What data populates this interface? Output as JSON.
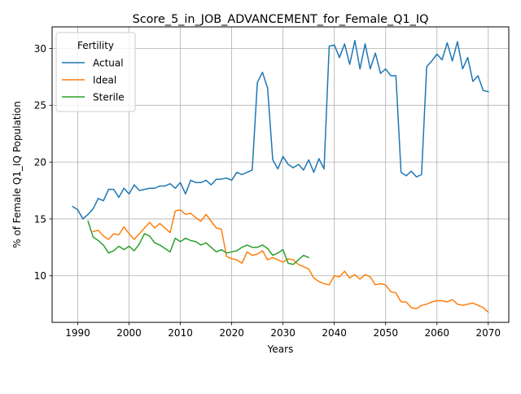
{
  "chart_data": {
    "type": "line",
    "title": "Score_5_in_JOB_ADVANCEMENT_for_Female_Q1_IQ",
    "xlabel": "Years",
    "ylabel": "% of Female Q1_IQ Population",
    "xlim": [
      1985,
      2074
    ],
    "ylim": [
      5.9,
      31.9
    ],
    "xticks": [
      1990,
      2000,
      2010,
      2020,
      2030,
      2040,
      2050,
      2060,
      2070
    ],
    "yticks": [
      10,
      15,
      20,
      25,
      30
    ],
    "grid": true,
    "legend": {
      "title": "Fertility",
      "position": "top-left"
    },
    "series": [
      {
        "name": "Actual",
        "color": "#1f77b4",
        "x": [
          1989,
          1990,
          1991,
          1992,
          1993,
          1994,
          1995,
          1996,
          1997,
          1998,
          1999,
          2000,
          2001,
          2002,
          2003,
          2004,
          2005,
          2006,
          2007,
          2008,
          2009,
          2010,
          2011,
          2012,
          2013,
          2014,
          2015,
          2016,
          2017,
          2018,
          2019,
          2020,
          2021,
          2022,
          2023,
          2024,
          2025,
          2026,
          2027,
          2028,
          2029,
          2030,
          2031,
          2032,
          2033,
          2034,
          2035,
          2036,
          2037,
          2038,
          2039,
          2040,
          2041,
          2042,
          2043,
          2044,
          2045,
          2046,
          2047,
          2048,
          2049,
          2050,
          2051,
          2052,
          2053,
          2054,
          2055,
          2056,
          2057,
          2058,
          2059,
          2060,
          2061,
          2062,
          2063,
          2064,
          2065,
          2066,
          2067,
          2068,
          2069,
          2070
        ],
        "y": [
          16.1,
          15.8,
          15.0,
          15.4,
          15.9,
          16.8,
          16.6,
          17.6,
          17.6,
          16.9,
          17.7,
          17.2,
          18.0,
          17.5,
          17.6,
          17.7,
          17.7,
          17.9,
          17.9,
          18.1,
          17.7,
          18.2,
          17.2,
          18.4,
          18.2,
          18.2,
          18.4,
          18.0,
          18.5,
          18.5,
          18.6,
          18.4,
          19.1,
          18.9,
          19.1,
          19.3,
          27.0,
          27.9,
          26.5,
          20.2,
          19.4,
          20.5,
          19.8,
          19.5,
          19.8,
          19.3,
          20.2,
          19.1,
          20.3,
          19.4,
          30.2,
          30.3,
          29.2,
          30.4,
          28.6,
          30.7,
          28.2,
          30.4,
          28.2,
          29.6,
          27.8,
          28.2,
          27.6,
          27.6,
          19.1,
          18.8,
          19.2,
          18.7,
          18.9,
          28.4,
          28.9,
          29.5,
          29.0,
          30.5,
          28.9,
          30.6,
          28.2,
          29.2,
          27.1,
          27.6,
          26.3,
          26.2
        ]
      },
      {
        "name": "Ideal",
        "color": "#ff7f0e",
        "x": [
          1993,
          1994,
          1995,
          1996,
          1997,
          1998,
          1999,
          2000,
          2001,
          2002,
          2003,
          2004,
          2005,
          2006,
          2007,
          2008,
          2009,
          2010,
          2011,
          2012,
          2013,
          2014,
          2015,
          2016,
          2017,
          2018,
          2019,
          2020,
          2021,
          2022,
          2023,
          2024,
          2025,
          2026,
          2027,
          2028,
          2029,
          2030,
          2031,
          2032,
          2033,
          2034,
          2035,
          2036,
          2037,
          2038,
          2039,
          2040,
          2041,
          2042,
          2043,
          2044,
          2045,
          2046,
          2047,
          2048,
          2049,
          2050,
          2051,
          2052,
          2053,
          2054,
          2055,
          2056,
          2057,
          2058,
          2059,
          2060,
          2061,
          2062,
          2063,
          2064,
          2065,
          2066,
          2067,
          2068,
          2069,
          2070
        ],
        "y": [
          13.9,
          14.0,
          13.5,
          13.2,
          13.7,
          13.6,
          14.3,
          13.7,
          13.2,
          13.7,
          14.2,
          14.7,
          14.2,
          14.6,
          14.2,
          13.8,
          15.7,
          15.8,
          15.4,
          15.5,
          15.1,
          14.8,
          15.4,
          14.8,
          14.2,
          14.1,
          11.7,
          11.5,
          11.4,
          11.1,
          12.1,
          11.8,
          11.9,
          12.2,
          11.4,
          11.6,
          11.4,
          11.2,
          11.5,
          11.4,
          11.0,
          10.8,
          10.6,
          9.8,
          9.5,
          9.3,
          9.2,
          10.0,
          9.9,
          10.4,
          9.8,
          10.1,
          9.7,
          10.1,
          9.9,
          9.2,
          9.3,
          9.2,
          8.6,
          8.5,
          7.7,
          7.7,
          7.2,
          7.1,
          7.4,
          7.5,
          7.7,
          7.8,
          7.8,
          7.7,
          7.9,
          7.5,
          7.4,
          7.5,
          7.6,
          7.4,
          7.2,
          6.8
        ]
      },
      {
        "name": "Sterile",
        "color": "#2ca02c",
        "x": [
          1992,
          1993,
          1994,
          1995,
          1996,
          1997,
          1998,
          1999,
          2000,
          2001,
          2002,
          2003,
          2004,
          2005,
          2006,
          2007,
          2008,
          2009,
          2010,
          2011,
          2012,
          2013,
          2014,
          2015,
          2016,
          2017,
          2018,
          2019,
          2020,
          2021,
          2022,
          2023,
          2024,
          2025,
          2026,
          2027,
          2028,
          2029,
          2030,
          2031,
          2032,
          2033,
          2034,
          2035
        ],
        "y": [
          14.8,
          13.4,
          13.1,
          12.7,
          12.0,
          12.2,
          12.6,
          12.3,
          12.6,
          12.2,
          12.8,
          13.7,
          13.5,
          12.9,
          12.7,
          12.4,
          12.1,
          13.3,
          13.0,
          13.3,
          13.1,
          13.0,
          12.7,
          12.9,
          12.5,
          12.1,
          12.3,
          12.0,
          12.1,
          12.2,
          12.5,
          12.7,
          12.5,
          12.5,
          12.7,
          12.4,
          11.8,
          12.0,
          12.3,
          11.1,
          11.0,
          11.4,
          11.8,
          11.6
        ]
      }
    ]
  }
}
